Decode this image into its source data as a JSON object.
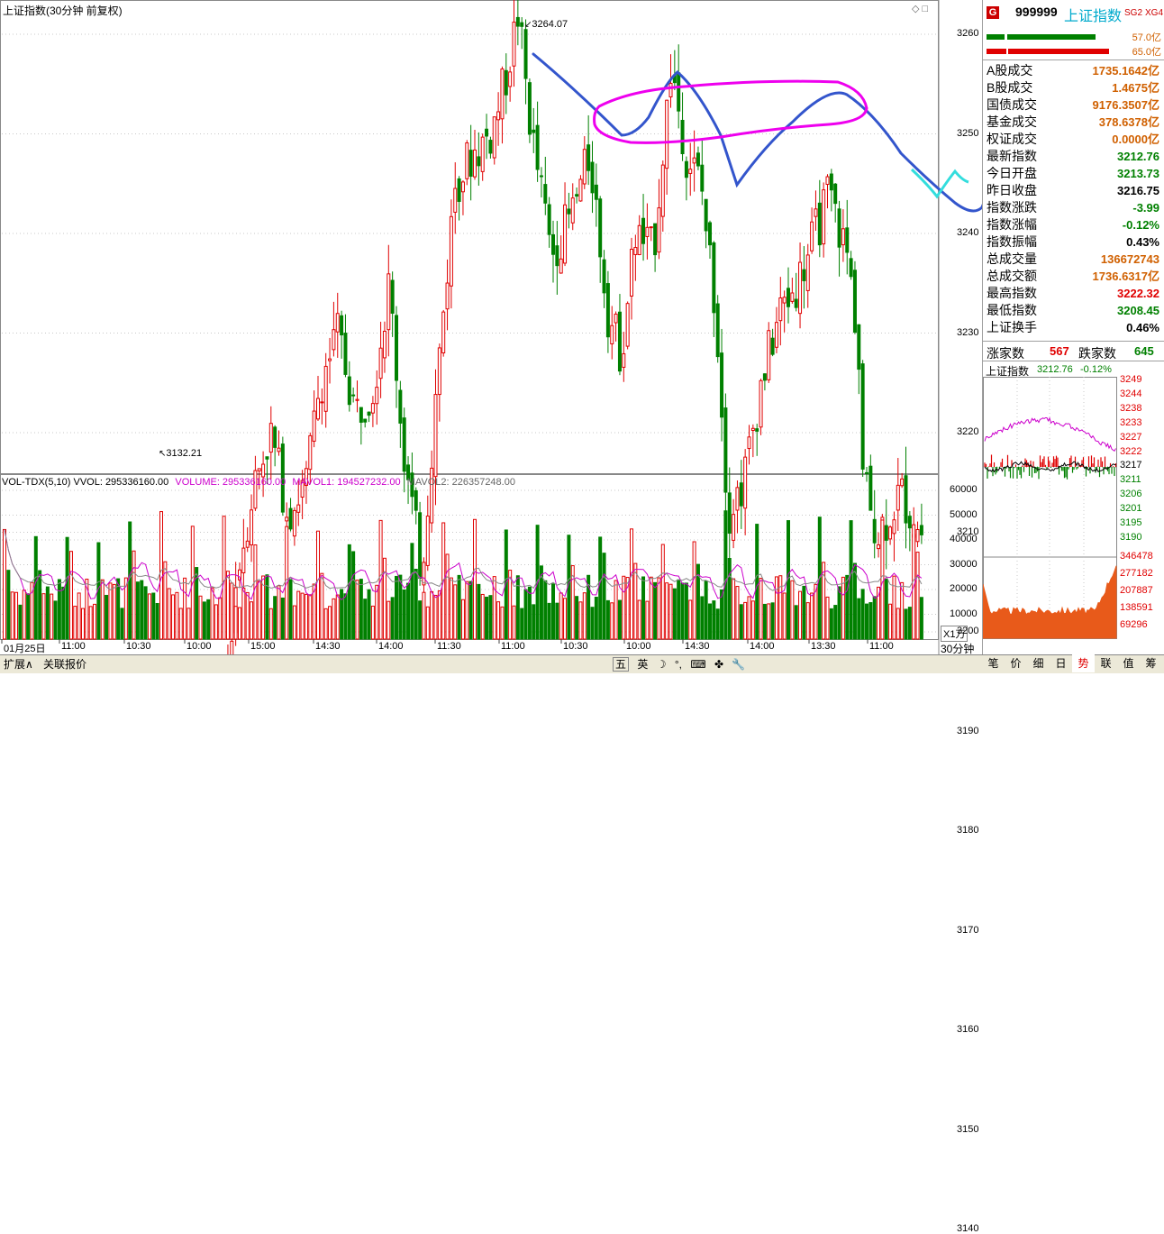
{
  "main": {
    "title": "上证指数(30分钟 前复权)",
    "high_label": "3264.07",
    "low_label": "3132.21",
    "price_axis": [
      "3260",
      "3250",
      "3240",
      "3230",
      "3220",
      "3210",
      "3200",
      "3190",
      "3180",
      "3170",
      "3160",
      "3150",
      "3140"
    ],
    "vol_header": {
      "name": "VOL-TDX(5,10)",
      "vvol": "VVOL: 295336160.00",
      "volume": "VOLUME: 295336160.00",
      "mavol1": "MAVOL1: 194527232.00",
      "mavol2": "MAVOL2: 226357248.00"
    },
    "vol_axis": [
      "60000",
      "50000",
      "40000",
      "30000",
      "20000",
      "10000"
    ],
    "vol_unit": "X1万",
    "time_labels": [
      "01月25日",
      "11:00",
      "10:30",
      "10:00",
      "15:00",
      "14:30",
      "14:00",
      "11:30",
      "11:00",
      "10:30",
      "10:00",
      "14:30",
      "14:00",
      "13:30",
      "11:00"
    ],
    "period": "30分钟"
  },
  "bottom_tabs": [
    "扩展∧",
    "关联报价"
  ],
  "ime": {
    "items": [
      "五",
      "英",
      "☽",
      "°,",
      "⌨",
      "✤",
      "🔧"
    ]
  },
  "right": {
    "code": "999999",
    "name": "上证指数",
    "badges": [
      "SG2",
      "XG4"
    ],
    "g_label": "G",
    "bar1_value": "57.0亿",
    "bar2_value": "65.0亿",
    "rows": [
      {
        "label": "A股成交",
        "value": "1735.1642亿",
        "color": "orange"
      },
      {
        "label": "B股成交",
        "value": "1.4675亿",
        "color": "orange"
      },
      {
        "label": "国债成交",
        "value": "9176.3507亿",
        "color": "orange"
      },
      {
        "label": "基金成交",
        "value": "378.6378亿",
        "color": "orange"
      },
      {
        "label": "权证成交",
        "value": "0.0000亿",
        "color": "orange"
      },
      {
        "label": "最新指数",
        "value": "3212.76",
        "color": "green"
      },
      {
        "label": "今日开盘",
        "value": "3213.73",
        "color": "green"
      },
      {
        "label": "昨日收盘",
        "value": "3216.75",
        "color": "black"
      },
      {
        "label": "指数涨跌",
        "value": "-3.99",
        "color": "green"
      },
      {
        "label": "指数涨幅",
        "value": "-0.12%",
        "color": "green"
      },
      {
        "label": "指数振幅",
        "value": "0.43%",
        "color": "black"
      },
      {
        "label": "总成交量",
        "value": "136672743",
        "color": "orange"
      },
      {
        "label": "总成交额",
        "value": "1736.6317亿",
        "color": "orange"
      },
      {
        "label": "最高指数",
        "value": "3222.32",
        "color": "red"
      },
      {
        "label": "最低指数",
        "value": "3208.45",
        "color": "green"
      },
      {
        "label": "上证换手",
        "value": "0.46%",
        "color": "black"
      }
    ],
    "up_label": "涨家数",
    "up_value": "567",
    "down_label": "跌家数",
    "down_value": "645",
    "mini_title": "上证指数",
    "mini_price": "3212.76",
    "mini_change": "-0.12%",
    "mini_axis": [
      "3249",
      "3244",
      "3238",
      "3233",
      "3227",
      "3222",
      "3217",
      "3211",
      "3206",
      "3201",
      "3195",
      "3190"
    ],
    "mini_vol_axis": [
      "346478",
      "277182",
      "207887",
      "138591",
      "69296"
    ],
    "tabs": [
      "笔",
      "价",
      "细",
      "日",
      "势",
      "联",
      "值",
      "筹"
    ]
  },
  "colors": {
    "up": "#e00000",
    "down": "#008000",
    "ma1": "#cc00cc",
    "annot_blue": "#3355cc",
    "annot_pink": "#ee00ee",
    "annot_cyan": "#33dddd"
  }
}
